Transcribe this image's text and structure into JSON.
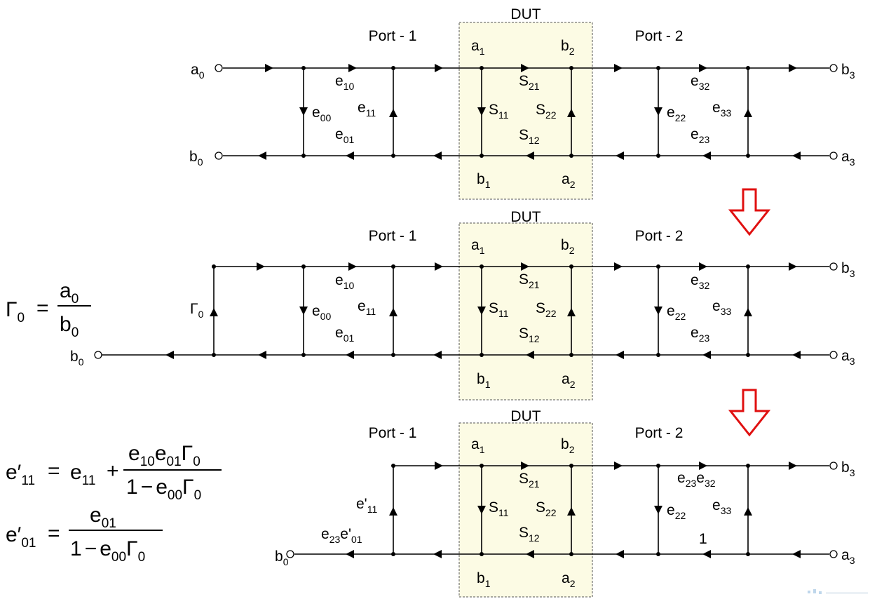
{
  "labels": {
    "dut": "DUT",
    "port1": "Port - 1",
    "port2": "Port - 2"
  },
  "row1": {
    "a0": "a",
    "a0_sub": "0",
    "b0": "b",
    "b0_sub": "0",
    "b3": "b",
    "b3_sub": "3",
    "a3": "a",
    "a3_sub": "3",
    "e10": "e",
    "e10_sub": "10",
    "e00": "e",
    "e00_sub": "00",
    "e11": "e",
    "e11_sub": "11",
    "e01": "e",
    "e01_sub": "01",
    "e32": "e",
    "e32_sub": "32",
    "e22": "e",
    "e22_sub": "22",
    "e33": "e",
    "e33_sub": "33",
    "e23": "e",
    "e23_sub": "23"
  },
  "row2": {
    "gamma0": "Γ",
    "gamma0_sub": "0",
    "b0": "b",
    "b0_sub": "0"
  },
  "row3": {
    "e11p": "e'",
    "e11p_sub": "11",
    "e23": "e",
    "e23_sub": "23",
    "e01p": "e'",
    "e01p_sub": "01",
    "e32": "e",
    "e32_sub": "32",
    "one": "1"
  },
  "dut_labels": {
    "a1": "a",
    "a1_sub": "1",
    "b2": "b",
    "b2_sub": "2",
    "b1": "b",
    "b1_sub": "1",
    "a2": "a",
    "a2_sub": "2",
    "s21": "S",
    "s21_sub": "21",
    "s11": "S",
    "s11_sub": "11",
    "s22": "S",
    "s22_sub": "22",
    "s12": "S",
    "s12_sub": "12"
  },
  "equations": {
    "gamma_lhs": "Γ",
    "gamma_lhs_sub": "0",
    "equals": "=",
    "gamma_num": "a",
    "gamma_num_sub": "0",
    "gamma_den": "b",
    "gamma_den_sub": "0",
    "e11p_lhs": "e′",
    "e11p_lhs_sub": "11",
    "e11_term": "e",
    "e11_term_sub": "11",
    "plus": "+",
    "e11p_num_a": "e",
    "e11p_num_a_sub": "10",
    "e11p_num_b": "e",
    "e11p_num_b_sub": "01",
    "e11p_num_c": "Γ",
    "e11p_num_c_sub": "0",
    "den_one": "1",
    "den_minus": "−",
    "den_e": "e",
    "den_e_sub": "00",
    "den_g": "Γ",
    "den_g_sub": "0",
    "e01p_lhs": "e′",
    "e01p_lhs_sub": "01",
    "e01p_num": "e",
    "e01p_num_sub": "01"
  },
  "colors": {
    "dut_fill": "#fcfbe4",
    "red_arrow": "#e01010"
  }
}
